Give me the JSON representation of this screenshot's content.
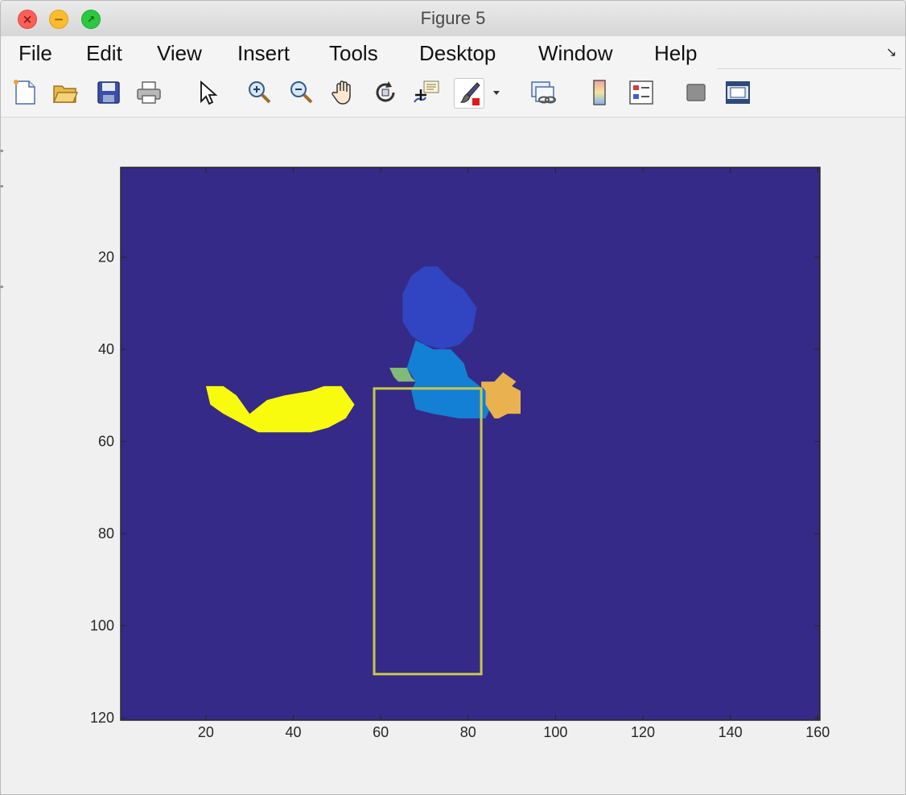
{
  "window": {
    "title": "Figure 5"
  },
  "menu": [
    "File",
    "Edit",
    "View",
    "Insert",
    "Tools",
    "Desktop",
    "Window",
    "Help"
  ],
  "toolbar": [
    "new-figure-icon",
    "open-file-icon",
    "save-icon",
    "print-icon",
    "edit-plot-pointer-icon",
    "zoom-in-icon",
    "zoom-out-icon",
    "pan-hand-icon",
    "rotate-3d-icon",
    "data-cursor-icon",
    "brush-icon",
    "brush-dropdown-icon",
    "link-plot-icon",
    "insert-colorbar-icon",
    "insert-legend-icon",
    "hide-plot-tools-icon",
    "show-plot-tools-icon"
  ],
  "chart_data": {
    "type": "heatmap",
    "title": "",
    "xlabel": "",
    "ylabel": "",
    "xlim": [
      0.5,
      160.5
    ],
    "ylim": [
      0.5,
      120.5
    ],
    "y_direction": "reverse",
    "xticks": [
      20,
      40,
      60,
      80,
      100,
      120,
      140,
      160
    ],
    "yticks": [
      20,
      40,
      60,
      80,
      100,
      120
    ],
    "background_color": "#352a87",
    "regions": [
      {
        "label": "blob-yellow",
        "color": "#f9fb0e",
        "points": [
          [
            20,
            48
          ],
          [
            24,
            48
          ],
          [
            27,
            50
          ],
          [
            30,
            54
          ],
          [
            34,
            51
          ],
          [
            38,
            50
          ],
          [
            44,
            49
          ],
          [
            47,
            48
          ],
          [
            51,
            48
          ],
          [
            54,
            52
          ],
          [
            52,
            55
          ],
          [
            50,
            56
          ],
          [
            48,
            57
          ],
          [
            44,
            58
          ],
          [
            32,
            58
          ],
          [
            28,
            56
          ],
          [
            24,
            54
          ],
          [
            21,
            52
          ]
        ]
      },
      {
        "label": "blob-dark-blue",
        "color": "#3144c1",
        "points": [
          [
            70,
            22
          ],
          [
            73,
            22
          ],
          [
            76,
            25
          ],
          [
            79,
            27
          ],
          [
            82,
            31
          ],
          [
            81,
            36
          ],
          [
            78,
            39
          ],
          [
            74,
            40
          ],
          [
            70,
            39
          ],
          [
            67,
            37
          ],
          [
            65,
            34
          ],
          [
            65,
            28
          ],
          [
            67,
            24
          ]
        ]
      },
      {
        "label": "blob-mid-blue",
        "color": "#1380d5",
        "points": [
          [
            68,
            38
          ],
          [
            72,
            40
          ],
          [
            76,
            40
          ],
          [
            79,
            43
          ],
          [
            80,
            46
          ],
          [
            84,
            49
          ],
          [
            85,
            53
          ],
          [
            84,
            55
          ],
          [
            78,
            55
          ],
          [
            72,
            54
          ],
          [
            68,
            53
          ],
          [
            67,
            49
          ],
          [
            68,
            47
          ],
          [
            66,
            44
          ]
        ]
      },
      {
        "label": "blob-green",
        "color": "#7fba77",
        "points": [
          [
            62,
            44
          ],
          [
            66,
            44
          ],
          [
            67,
            46
          ],
          [
            68,
            47
          ],
          [
            64,
            47
          ],
          [
            63,
            46
          ]
        ]
      },
      {
        "label": "blob-orange",
        "color": "#eab24f",
        "points": [
          [
            83,
            47
          ],
          [
            86,
            47
          ],
          [
            88,
            45
          ],
          [
            91,
            47
          ],
          [
            90,
            48
          ],
          [
            92,
            49
          ],
          [
            92,
            54
          ],
          [
            89,
            54
          ],
          [
            87,
            55
          ],
          [
            86,
            55
          ],
          [
            84,
            52
          ],
          [
            84,
            49
          ],
          [
            83,
            48
          ]
        ]
      }
    ],
    "box": {
      "x": [
        58.5,
        83
      ],
      "y": [
        48.5,
        110.5
      ],
      "color": "#c8c84a"
    }
  }
}
